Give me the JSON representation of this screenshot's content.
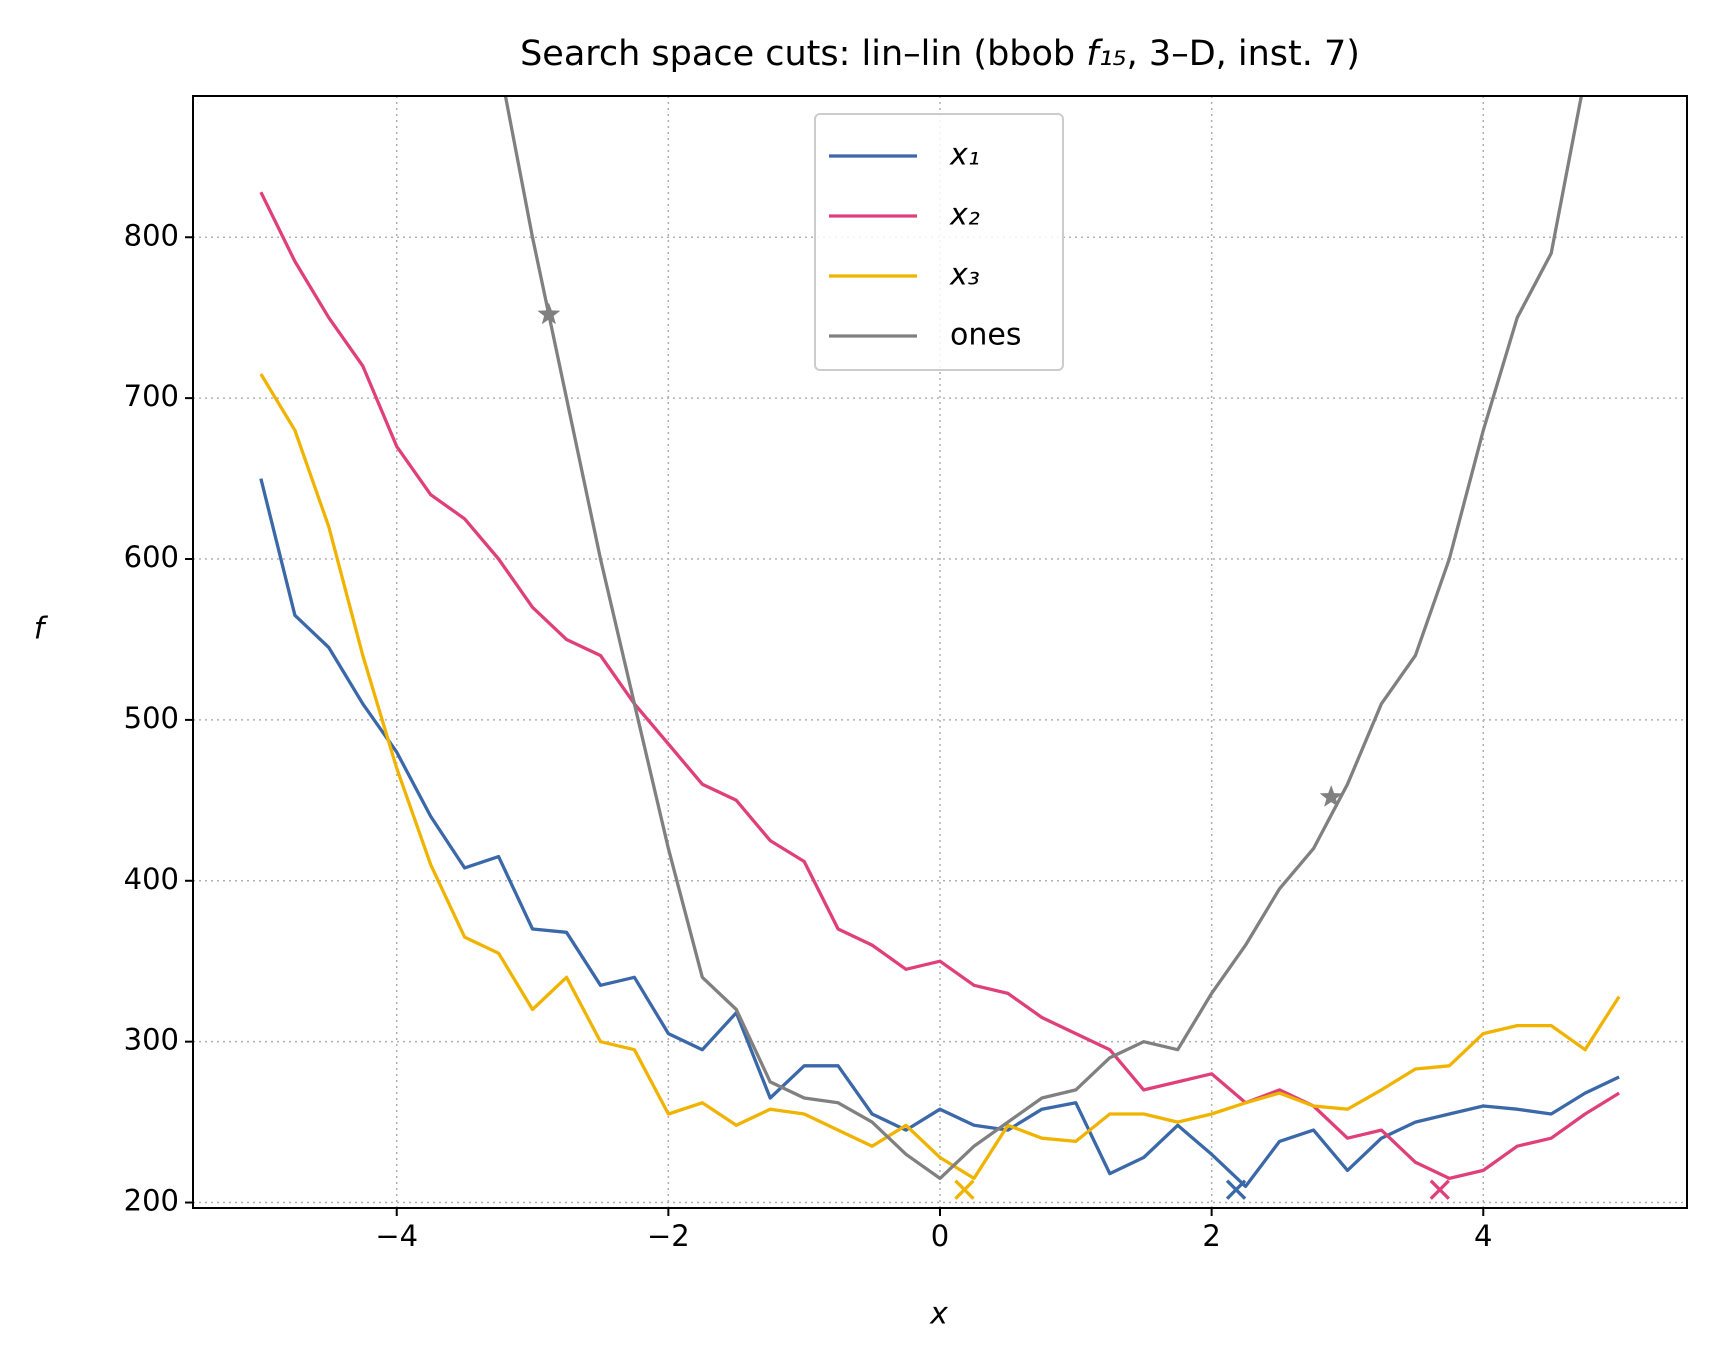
{
  "chart_data": {
    "type": "line",
    "title": [
      "Search space cuts: lin–lin (bbob ",
      "f₁₅",
      ", 3–D, inst. 7)"
    ],
    "xlabel": "x",
    "ylabel": "f",
    "x": [
      -5,
      -4.75,
      -4.5,
      -4.25,
      -4,
      -3.75,
      -3.5,
      -3.25,
      -3,
      -2.75,
      -2.5,
      -2.25,
      -2,
      -1.75,
      -1.5,
      -1.25,
      -1,
      -0.75,
      -0.5,
      -0.25,
      0,
      0.25,
      0.5,
      0.75,
      1,
      1.25,
      1.5,
      1.75,
      2,
      2.25,
      2.5,
      2.75,
      3,
      3.25,
      3.5,
      3.75,
      4,
      4.25,
      4.5,
      4.75,
      5
    ],
    "xlim": [
      -5.5,
      5.5
    ],
    "xticks": [
      {
        "value": -4,
        "label": "−4"
      },
      {
        "value": -2,
        "label": "−2"
      },
      0,
      2,
      4
    ],
    "ylim": [
      196.6,
      887.8
    ],
    "yticks": [
      200,
      300,
      400,
      500,
      600,
      700,
      800
    ],
    "grid": true,
    "legend": "upper center",
    "series": [
      {
        "name": "x₁",
        "label_style": "italic",
        "color": "#3a68a8",
        "values": [
          650,
          565,
          545,
          510,
          480,
          440,
          408,
          415,
          370,
          368,
          335,
          340,
          305,
          295,
          318,
          265,
          285,
          285,
          255,
          245,
          258,
          248,
          245,
          258,
          262,
          218,
          228,
          248,
          230,
          210,
          238,
          245,
          220,
          240,
          250,
          255,
          260,
          258,
          255,
          268,
          278
        ],
        "markers": [
          {
            "x": 2.18,
            "y": 208,
            "symbol": "x"
          }
        ]
      },
      {
        "name": "x₂",
        "label_style": "italic",
        "color": "#e0407a",
        "values": [
          828,
          785,
          750,
          720,
          670,
          640,
          625,
          600,
          570,
          550,
          540,
          510,
          485,
          460,
          450,
          425,
          412,
          370,
          360,
          345,
          350,
          335,
          330,
          315,
          305,
          295,
          270,
          275,
          280,
          262,
          270,
          260,
          240,
          245,
          225,
          215,
          220,
          235,
          240,
          255,
          268
        ],
        "markers": [
          {
            "x": 3.68,
            "y": 208,
            "symbol": "x"
          }
        ]
      },
      {
        "name": "x₃",
        "label_style": "italic",
        "color": "#f0b400",
        "values": [
          715,
          680,
          620,
          540,
          470,
          410,
          365,
          355,
          320,
          340,
          300,
          295,
          255,
          262,
          248,
          258,
          255,
          245,
          235,
          248,
          228,
          215,
          248,
          240,
          238,
          255,
          255,
          250,
          255,
          262,
          268,
          260,
          258,
          270,
          283,
          285,
          305,
          310,
          310,
          295,
          328
        ],
        "markers": [
          {
            "x": 0.18,
            "y": 208,
            "symbol": "x"
          }
        ]
      },
      {
        "name": "ones",
        "label_style": "normal",
        "color": "#808080",
        "values": [
          null,
          null,
          null,
          null,
          null,
          null,
          null,
          910,
          800,
          700,
          600,
          510,
          420,
          340,
          320,
          275,
          265,
          262,
          250,
          230,
          215,
          235,
          250,
          265,
          270,
          290,
          300,
          295,
          330,
          360,
          395,
          420,
          460,
          510,
          540,
          600,
          680,
          750,
          790,
          900,
          null
        ],
        "markers": [
          {
            "x": -2.88,
            "y": 752,
            "symbol": "star"
          },
          {
            "x": 2.88,
            "y": 452,
            "symbol": "star"
          }
        ]
      }
    ]
  }
}
